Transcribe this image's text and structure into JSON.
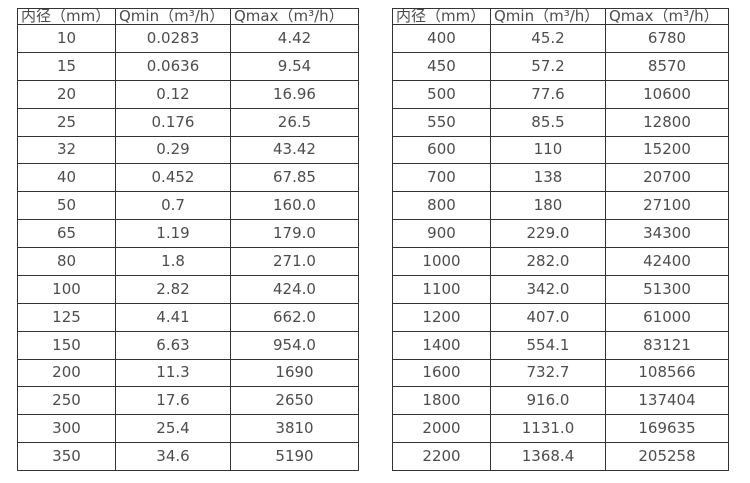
{
  "colors": {
    "background": "#ffffff",
    "text": "#4d4d4d",
    "border": "#333333"
  },
  "chart_data": [
    {
      "type": "table",
      "name": "flow-spec-table-small-diameters",
      "columns": [
        "内径（mm）",
        "Qmin（m³/h）",
        "Qmax（m³/h）"
      ],
      "rows": [
        [
          "10",
          "0.0283",
          "4.42"
        ],
        [
          "15",
          "0.0636",
          "9.54"
        ],
        [
          "20",
          "0.12",
          "16.96"
        ],
        [
          "25",
          "0.176",
          "26.5"
        ],
        [
          "32",
          "0.29",
          "43.42"
        ],
        [
          "40",
          "0.452",
          "67.85"
        ],
        [
          "50",
          "0.7",
          "160.0"
        ],
        [
          "65",
          "1.19",
          "179.0"
        ],
        [
          "80",
          "1.8",
          "271.0"
        ],
        [
          "100",
          "2.82",
          "424.0"
        ],
        [
          "125",
          "4.41",
          "662.0"
        ],
        [
          "150",
          "6.63",
          "954.0"
        ],
        [
          "200",
          "11.3",
          "1690"
        ],
        [
          "250",
          "17.6",
          "2650"
        ],
        [
          "300",
          "25.4",
          "3810"
        ],
        [
          "350",
          "34.6",
          "5190"
        ]
      ]
    },
    {
      "type": "table",
      "name": "flow-spec-table-large-diameters",
      "columns": [
        "内径（mm）",
        "Qmin（m³/h）",
        "Qmax（m³/h）"
      ],
      "rows": [
        [
          "400",
          "45.2",
          "6780"
        ],
        [
          "450",
          "57.2",
          "8570"
        ],
        [
          "500",
          "77.6",
          "10600"
        ],
        [
          "550",
          "85.5",
          "12800"
        ],
        [
          "600",
          "110",
          "15200"
        ],
        [
          "700",
          "138",
          "20700"
        ],
        [
          "800",
          "180",
          "27100"
        ],
        [
          "900",
          "229.0",
          "34300"
        ],
        [
          "1000",
          "282.0",
          "42400"
        ],
        [
          "1100",
          "342.0",
          "51300"
        ],
        [
          "1200",
          "407.0",
          "61000"
        ],
        [
          "1400",
          "554.1",
          "83121"
        ],
        [
          "1600",
          "732.7",
          "108566"
        ],
        [
          "1800",
          "916.0",
          "137404"
        ],
        [
          "2000",
          "1131.0",
          "169635"
        ],
        [
          "2200",
          "1368.4",
          "205258"
        ]
      ]
    }
  ]
}
